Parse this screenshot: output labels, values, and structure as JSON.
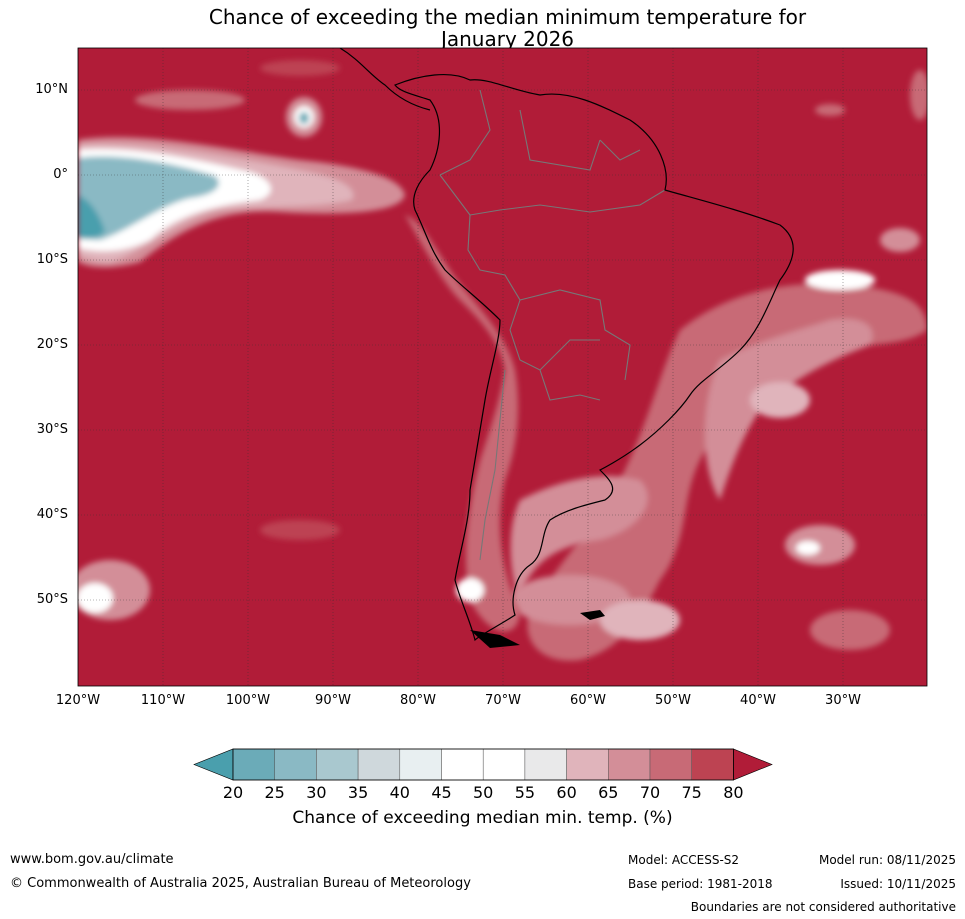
{
  "title": {
    "line1": "Chance of exceeding the median minimum temperature for",
    "line2": "January 2026"
  },
  "map": {
    "region": "South America and surrounding oceans",
    "lat_labels": [
      "10°N",
      "0°",
      "10°S",
      "20°S",
      "30°S",
      "40°S",
      "50°S"
    ],
    "lon_labels": [
      "120°W",
      "110°W",
      "100°W",
      "90°W",
      "80°W",
      "70°W",
      "60°W",
      "50°W",
      "40°W",
      "30°W"
    ],
    "background_color": "#b11c38",
    "coast_color": "#000000",
    "border_color": "#777777"
  },
  "colorbar": {
    "ticks": [
      "20",
      "25",
      "30",
      "35",
      "40",
      "45",
      "50",
      "55",
      "60",
      "65",
      "70",
      "75",
      "80"
    ],
    "colors": [
      "#4a9fad",
      "#6babb8",
      "#8ab9c4",
      "#a9c8cf",
      "#cfd8dc",
      "#e8eff1",
      "#ffffff",
      "#ffffff",
      "#e9e9ea",
      "#e0b4bb",
      "#d38e98",
      "#c86a76",
      "#bd4352",
      "#b11c38"
    ],
    "label": "Chance of exceeding median min. temp. (%)"
  },
  "footer": {
    "website": "www.bom.gov.au/climate",
    "copyright": "© Commonwealth of Australia 2025, Australian Bureau of Meteorology",
    "model": "Model: ACCESS-S2",
    "base_period": "Base period: 1981-2018",
    "model_run": "Model run: 08/11/2025",
    "issued": "Issued: 10/11/2025",
    "disclaimer": "Boundaries are not considered authoritative"
  }
}
